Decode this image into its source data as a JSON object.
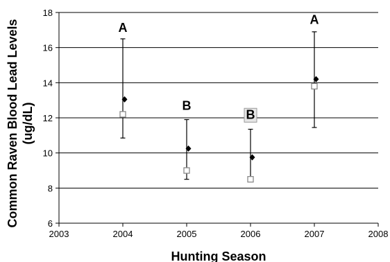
{
  "chart_data": {
    "type": "scatter",
    "xlabel": "Hunting Season",
    "ylabel": "Common Raven Blood Lead Levels (ug/dL)",
    "ylabel_lines": [
      "Common Raven Blood Lead Levels",
      "(ug/dL)"
    ],
    "xlim": [
      2003,
      2008
    ],
    "ylim": [
      6,
      18
    ],
    "xticks": [
      2003,
      2004,
      2005,
      2006,
      2007,
      2008
    ],
    "yticks": [
      6,
      8,
      10,
      12,
      14,
      16,
      18
    ],
    "grid": "horizontal",
    "series": [
      {
        "marker": "filled-diamond",
        "color": "#000000",
        "points": [
          {
            "x": 2004,
            "y": 13.05,
            "err_low": 10.85,
            "err_high": 16.5
          },
          {
            "x": 2005,
            "y": 10.25,
            "err_low": 8.5,
            "err_high": 11.9
          },
          {
            "x": 2006,
            "y": 9.75,
            "err_low": 8.5,
            "err_high": 11.35
          },
          {
            "x": 2007,
            "y": 14.2,
            "err_low": 11.45,
            "err_high": 16.9
          }
        ]
      },
      {
        "marker": "open-square",
        "color": "#888888",
        "points": [
          {
            "x": 2004,
            "y": 12.2
          },
          {
            "x": 2005,
            "y": 9.0
          },
          {
            "x": 2006,
            "y": 8.5
          },
          {
            "x": 2007,
            "y": 13.8
          }
        ]
      }
    ],
    "annotations": [
      {
        "x": 2004,
        "y": 16.9,
        "text": "A",
        "boxed": false
      },
      {
        "x": 2005,
        "y": 12.45,
        "text": "B",
        "boxed": false
      },
      {
        "x": 2006,
        "y": 11.95,
        "text": "B",
        "boxed": true
      },
      {
        "x": 2007,
        "y": 17.35,
        "text": "A",
        "boxed": false
      }
    ]
  }
}
